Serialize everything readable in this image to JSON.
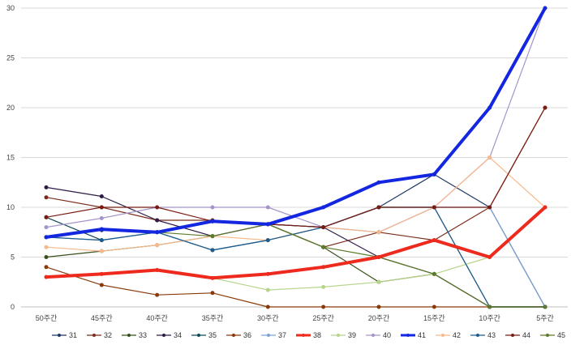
{
  "chart_data": {
    "type": "line",
    "categories": [
      "50주간",
      "45주간",
      "40주간",
      "35주간",
      "30주간",
      "25주간",
      "20주간",
      "15주간",
      "10주간",
      "5주간"
    ],
    "ylim": [
      0,
      30
    ],
    "yticks": [
      0,
      5,
      10,
      15,
      20,
      25,
      30
    ],
    "grid": true,
    "legend_position": "bottom",
    "series": [
      {
        "name": "31",
        "color": "#1F3864",
        "width": 1.2,
        "values": [
          7,
          7.7,
          7.5,
          8.6,
          8.3,
          8,
          10,
          13.3,
          10,
          0
        ]
      },
      {
        "name": "32",
        "color": "#7B2C1A",
        "width": 1.2,
        "values": [
          11,
          10,
          8.7,
          8.7,
          8.3,
          6,
          7.5,
          6.7,
          10,
          20
        ]
      },
      {
        "name": "33",
        "color": "#38501B",
        "width": 1.2,
        "values": [
          5,
          5.6,
          6.2,
          7.1,
          8.3,
          6,
          2.5,
          3.3,
          0,
          0
        ]
      },
      {
        "name": "34",
        "color": "#2F1B46",
        "width": 1.2,
        "values": [
          12,
          11.1,
          8.7,
          7.1,
          8.3,
          8,
          5,
          3.3,
          0,
          0
        ]
      },
      {
        "name": "35",
        "color": "#0F4A57",
        "width": 1.2,
        "values": [
          9,
          6.7,
          7.5,
          5.7,
          6.7,
          8,
          10,
          10,
          0,
          0
        ]
      },
      {
        "name": "36",
        "color": "#8A3A08",
        "width": 1.2,
        "values": [
          4,
          2.2,
          1.2,
          1.4,
          0,
          0,
          0,
          0,
          0,
          0
        ]
      },
      {
        "name": "37",
        "color": "#7BA3D6",
        "width": 1.2,
        "values": [
          7,
          6.7,
          7.5,
          5.7,
          6.7,
          8,
          7.5,
          10,
          10,
          0
        ]
      },
      {
        "name": "38",
        "color": "#EE2A1E",
        "width": 4,
        "values": [
          3,
          3.3,
          3.7,
          2.9,
          3.3,
          4,
          5,
          6.7,
          5,
          10
        ]
      },
      {
        "name": "39",
        "color": "#B6D48A",
        "width": 1.2,
        "values": [
          3,
          3.3,
          3.7,
          2.9,
          1.7,
          2,
          2.5,
          3.3,
          5,
          10
        ]
      },
      {
        "name": "40",
        "color": "#A594CC",
        "width": 1.2,
        "values": [
          8,
          8.9,
          10,
          10,
          10,
          8,
          7.5,
          10,
          15,
          30
        ]
      },
      {
        "name": "41",
        "color": "#1326E0",
        "width": 4,
        "values": [
          7,
          7.8,
          7.5,
          8.6,
          8.3,
          10,
          12.5,
          13.3,
          20,
          30
        ]
      },
      {
        "name": "42",
        "color": "#F7B98A",
        "width": 1.2,
        "values": [
          6,
          5.6,
          6.2,
          7.1,
          6.7,
          8,
          7.5,
          10,
          15,
          10
        ]
      },
      {
        "name": "43",
        "color": "#1D5C8C",
        "width": 1.2,
        "values": [
          7,
          6.7,
          7.5,
          5.7,
          6.7,
          8,
          10,
          10,
          0,
          0
        ]
      },
      {
        "name": "44",
        "color": "#7A1B12",
        "width": 1.2,
        "values": [
          9,
          10,
          10,
          8.6,
          8.3,
          8,
          10,
          10,
          10,
          20
        ]
      },
      {
        "name": "45",
        "color": "#5C7A2A",
        "width": 1.2,
        "values": [
          7,
          7.8,
          7.5,
          7.1,
          8.3,
          6,
          5,
          3.3,
          0,
          0
        ]
      }
    ]
  }
}
